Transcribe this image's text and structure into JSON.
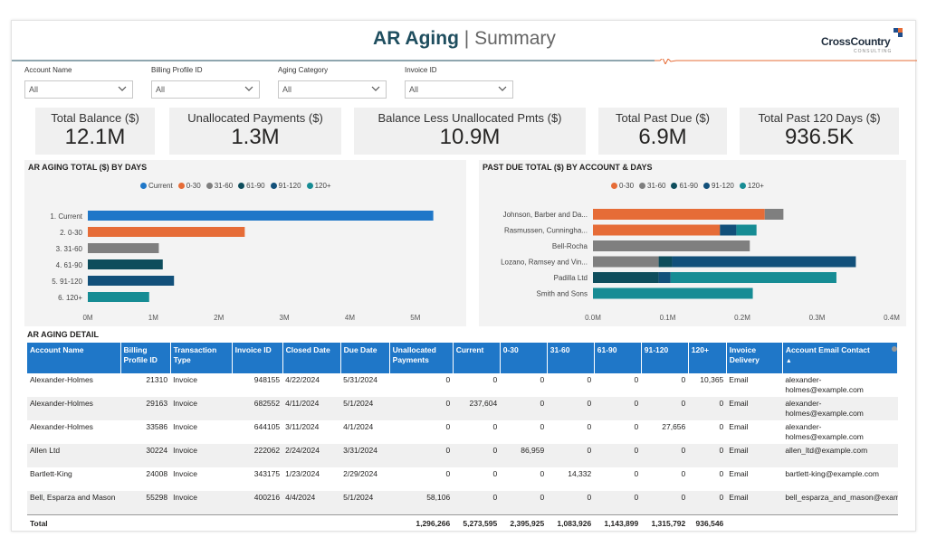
{
  "header": {
    "title_bold": "AR Aging",
    "separator": "|",
    "title_light": "Summary",
    "logo_text": "CrossCountry",
    "logo_sub": "CONSULTING"
  },
  "colors": {
    "current": "#1f77c8",
    "d0_30": "#e66c37",
    "d31_60": "#7f7f7f",
    "d61_90": "#0e4d5c",
    "d91_120": "#12507a",
    "d120plus": "#168c94",
    "header_line": "#1f4e5f",
    "pulse": "#e66c37",
    "table_header": "#1f77c8"
  },
  "filters": [
    {
      "label": "Account Name",
      "value": "All"
    },
    {
      "label": "Billing Profile ID",
      "value": "All"
    },
    {
      "label": "Aging Category",
      "value": "All"
    },
    {
      "label": "Invoice ID",
      "value": "All"
    }
  ],
  "kpis": [
    {
      "label": "Total Balance ($)",
      "value": "12.1M"
    },
    {
      "label": "Unallocated Payments ($)",
      "value": "1.3M"
    },
    {
      "label": "Balance Less Unallocated Pmts ($)",
      "value": "10.9M"
    },
    {
      "label": "Total Past Due ($)",
      "value": "6.9M"
    },
    {
      "label": "Total Past 120 Days ($)",
      "value": "936.5K"
    }
  ],
  "chart_data": [
    {
      "type": "bar",
      "title": "AR AGING TOTAL ($) BY DAYS",
      "orientation": "horizontal",
      "legend_placement": "top",
      "legend": [
        {
          "name": "Current",
          "color": "#1f77c8"
        },
        {
          "name": "0-30",
          "color": "#e66c37"
        },
        {
          "name": "31-60",
          "color": "#7f7f7f"
        },
        {
          "name": "61-90",
          "color": "#0e4d5c"
        },
        {
          "name": "91-120",
          "color": "#12507a"
        },
        {
          "name": "120+",
          "color": "#168c94"
        }
      ],
      "categories": [
        "1. Current",
        "2. 0-30",
        "3. 31-60",
        "4. 61-90",
        "5. 91-120",
        "6. 120+"
      ],
      "values": [
        5273595,
        2395925,
        1083926,
        1143899,
        1315792,
        936546
      ],
      "bar_colors": [
        "#1f77c8",
        "#e66c37",
        "#7f7f7f",
        "#0e4d5c",
        "#12507a",
        "#168c94"
      ],
      "xlim": [
        0,
        5500000
      ],
      "xticks": [
        0,
        1000000,
        2000000,
        3000000,
        4000000,
        5000000
      ],
      "xtick_labels": [
        "0M",
        "1M",
        "2M",
        "3M",
        "4M",
        "5M"
      ],
      "grid": false
    },
    {
      "type": "bar",
      "stacked": true,
      "title": "PAST DUE TOTAL ($) BY ACCOUNT & DAYS",
      "orientation": "horizontal",
      "legend_placement": "top",
      "legend": [
        {
          "name": "0-30",
          "color": "#e66c37"
        },
        {
          "name": "31-60",
          "color": "#7f7f7f"
        },
        {
          "name": "61-90",
          "color": "#0e4d5c"
        },
        {
          "name": "91-120",
          "color": "#12507a"
        },
        {
          "name": "120+",
          "color": "#168c94"
        }
      ],
      "categories": [
        "Johnson, Barber and Da...",
        "Rasmussen, Cunningha...",
        "Bell-Rocha",
        "Lozano, Ramsey and Vin...",
        "Padilla Ltd",
        "Smith and Sons"
      ],
      "series": [
        {
          "name": "0-30",
          "color": "#e66c37",
          "values": [
            230000,
            170000,
            0,
            0,
            0,
            0
          ]
        },
        {
          "name": "31-60",
          "color": "#7f7f7f",
          "values": [
            25000,
            0,
            210000,
            88000,
            0,
            0
          ]
        },
        {
          "name": "61-90",
          "color": "#0e4d5c",
          "values": [
            0,
            0,
            0,
            18000,
            88000,
            0
          ]
        },
        {
          "name": "91-120",
          "color": "#12507a",
          "values": [
            0,
            22000,
            0,
            246000,
            16000,
            0
          ]
        },
        {
          "name": "120+",
          "color": "#168c94",
          "values": [
            0,
            27000,
            0,
            0,
            222000,
            214000
          ]
        }
      ],
      "xlim": [
        0,
        400000
      ],
      "xticks": [
        0,
        100000,
        200000,
        300000,
        400000
      ],
      "xtick_labels": [
        "0.0M",
        "0.1M",
        "0.2M",
        "0.3M",
        "0.4M"
      ],
      "grid": false
    }
  ],
  "detail": {
    "title": "AR AGING DETAIL",
    "columns": [
      "Account Name",
      "Billing Profile ID",
      "Transaction Type",
      "Invoice ID",
      "Closed Date",
      "Due Date",
      "Unallocated Payments",
      "Current",
      "0-30",
      "31-60",
      "61-90",
      "91-120",
      "120+",
      "Invoice Delivery",
      "Account Email Contact"
    ],
    "sort_indicator": "▲",
    "rows": [
      [
        "Alexander-Holmes",
        "21310",
        "Invoice",
        "948155",
        "4/22/2024",
        "5/31/2024",
        "0",
        "0",
        "0",
        "0",
        "0",
        "0",
        "10,365",
        "Email",
        "alexander-holmes@example.com"
      ],
      [
        "Alexander-Holmes",
        "29163",
        "Invoice",
        "682552",
        "4/11/2024",
        "5/1/2024",
        "0",
        "237,604",
        "0",
        "0",
        "0",
        "0",
        "0",
        "Email",
        "alexander-holmes@example.com"
      ],
      [
        "Alexander-Holmes",
        "33586",
        "Invoice",
        "644105",
        "3/11/2024",
        "4/1/2024",
        "0",
        "0",
        "0",
        "0",
        "0",
        "27,656",
        "0",
        "Email",
        "alexander-holmes@example.com"
      ],
      [
        "Allen Ltd",
        "30224",
        "Invoice",
        "222062",
        "2/24/2024",
        "3/31/2024",
        "0",
        "0",
        "86,959",
        "0",
        "0",
        "0",
        "0",
        "Email",
        "allen_ltd@example.com"
      ],
      [
        "Bartlett-King",
        "24008",
        "Invoice",
        "343175",
        "1/23/2024",
        "2/29/2024",
        "0",
        "0",
        "0",
        "14,332",
        "0",
        "0",
        "0",
        "Email",
        "bartlett-king@example.com"
      ],
      [
        "Bell, Esparza and Mason",
        "55298",
        "Invoice",
        "400216",
        "4/4/2024",
        "5/1/2024",
        "58,106",
        "0",
        "0",
        "0",
        "0",
        "0",
        "0",
        "Email",
        "bell_esparza_and_mason@example.com"
      ]
    ],
    "total": [
      "Total",
      "",
      "",
      "",
      "",
      "",
      "1,296,266",
      "5,273,595",
      "2,395,925",
      "1,083,926",
      "1,143,899",
      "1,315,792",
      "936,546",
      "",
      ""
    ]
  }
}
